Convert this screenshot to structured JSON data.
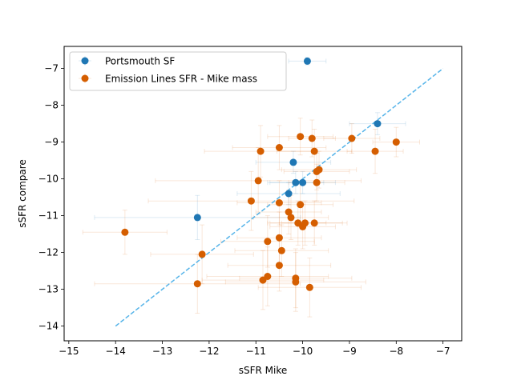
{
  "chart_data": {
    "type": "scatter",
    "title": "",
    "xlabel": "sSFR Mike",
    "ylabel": "sSFR compare",
    "xlim": [
      -15.1,
      -6.6
    ],
    "ylim": [
      -14.4,
      -6.4
    ],
    "xticks": [
      -15,
      -14,
      -13,
      -12,
      -11,
      -10,
      -9,
      -8,
      -7
    ],
    "yticks": [
      -14,
      -13,
      -12,
      -11,
      -10,
      -9,
      -8,
      -7
    ],
    "grid": false,
    "legend_position": "upper-left",
    "reference_line": {
      "x": [
        -14,
        -7
      ],
      "y": [
        -14,
        -7
      ],
      "style": "dashed",
      "color": "#56b4e9"
    },
    "series": [
      {
        "name": "Portsmouth SF",
        "color": "#1f77b4",
        "points": [
          {
            "x": -9.9,
            "y": -6.8,
            "xerr": 0.4,
            "yerr": 0.1
          },
          {
            "x": -8.4,
            "y": -8.5,
            "xerr": 0.6,
            "yerr": 0.3
          },
          {
            "x": -10.2,
            "y": -9.55,
            "xerr": 0.8,
            "yerr": 0.3
          },
          {
            "x": -10.15,
            "y": -10.1,
            "xerr": 0.6,
            "yerr": 0.3
          },
          {
            "x": -10.0,
            "y": -10.1,
            "xerr": 0.7,
            "yerr": 0.3
          },
          {
            "x": -10.3,
            "y": -10.4,
            "xerr": 1.1,
            "yerr": 0.3
          },
          {
            "x": -12.25,
            "y": -11.05,
            "xerr": 2.2,
            "yerr": 0.6
          }
        ]
      },
      {
        "name": "Emission Lines SFR - Mike mass",
        "color": "#d55e00",
        "points": [
          {
            "x": -10.05,
            "y": -8.85,
            "xerr": 0.7,
            "yerr": 0.5
          },
          {
            "x": -9.8,
            "y": -8.9,
            "xerr": 0.5,
            "yerr": 0.5
          },
          {
            "x": -8.95,
            "y": -8.9,
            "xerr": 0.6,
            "yerr": 0.4
          },
          {
            "x": -8.0,
            "y": -9.0,
            "xerr": 0.5,
            "yerr": 0.4
          },
          {
            "x": -10.9,
            "y": -9.25,
            "xerr": 1.2,
            "yerr": 0.7
          },
          {
            "x": -10.5,
            "y": -9.15,
            "xerr": 1.0,
            "yerr": 0.6
          },
          {
            "x": -9.75,
            "y": -9.25,
            "xerr": 0.8,
            "yerr": 0.6
          },
          {
            "x": -8.45,
            "y": -9.25,
            "xerr": 0.6,
            "yerr": 0.6
          },
          {
            "x": -9.7,
            "y": -9.8,
            "xerr": 0.7,
            "yerr": 0.5
          },
          {
            "x": -9.65,
            "y": -9.75,
            "xerr": 0.8,
            "yerr": 0.5
          },
          {
            "x": -9.7,
            "y": -10.1,
            "xerr": 0.6,
            "yerr": 0.5
          },
          {
            "x": -10.95,
            "y": -10.05,
            "xerr": 2.2,
            "yerr": 0.9
          },
          {
            "x": -11.1,
            "y": -10.6,
            "xerr": 2.2,
            "yerr": 0.8
          },
          {
            "x": -10.5,
            "y": -10.65,
            "xerr": 0.9,
            "yerr": 0.6
          },
          {
            "x": -10.05,
            "y": -10.7,
            "xerr": 0.7,
            "yerr": 0.6
          },
          {
            "x": -10.3,
            "y": -10.9,
            "xerr": 0.7,
            "yerr": 0.6
          },
          {
            "x": -10.25,
            "y": -11.05,
            "xerr": 0.8,
            "yerr": 0.6
          },
          {
            "x": -10.1,
            "y": -11.2,
            "xerr": 0.6,
            "yerr": 0.6
          },
          {
            "x": -9.95,
            "y": -11.2,
            "xerr": 0.8,
            "yerr": 0.6
          },
          {
            "x": -10.0,
            "y": -11.3,
            "xerr": 0.7,
            "yerr": 0.6
          },
          {
            "x": -9.75,
            "y": -11.2,
            "xerr": 0.7,
            "yerr": 0.6
          },
          {
            "x": -13.8,
            "y": -11.45,
            "xerr": 0.9,
            "yerr": 0.6
          },
          {
            "x": -10.5,
            "y": -11.6,
            "xerr": 0.9,
            "yerr": 0.7
          },
          {
            "x": -10.75,
            "y": -11.7,
            "xerr": 1.0,
            "yerr": 0.7
          },
          {
            "x": -10.45,
            "y": -11.95,
            "xerr": 1.0,
            "yerr": 0.7
          },
          {
            "x": -12.15,
            "y": -12.05,
            "xerr": 1.1,
            "yerr": 0.8
          },
          {
            "x": -10.5,
            "y": -12.35,
            "xerr": 1.1,
            "yerr": 0.7
          },
          {
            "x": -10.75,
            "y": -12.65,
            "xerr": 1.3,
            "yerr": 0.8
          },
          {
            "x": -10.85,
            "y": -12.75,
            "xerr": 1.3,
            "yerr": 0.8
          },
          {
            "x": -10.15,
            "y": -12.7,
            "xerr": 1.2,
            "yerr": 0.8
          },
          {
            "x": -10.15,
            "y": -12.8,
            "xerr": 1.5,
            "yerr": 0.8
          },
          {
            "x": -12.25,
            "y": -12.85,
            "xerr": 2.2,
            "yerr": 0.8
          },
          {
            "x": -9.85,
            "y": -12.95,
            "xerr": 1.1,
            "yerr": 0.8
          }
        ]
      }
    ]
  }
}
